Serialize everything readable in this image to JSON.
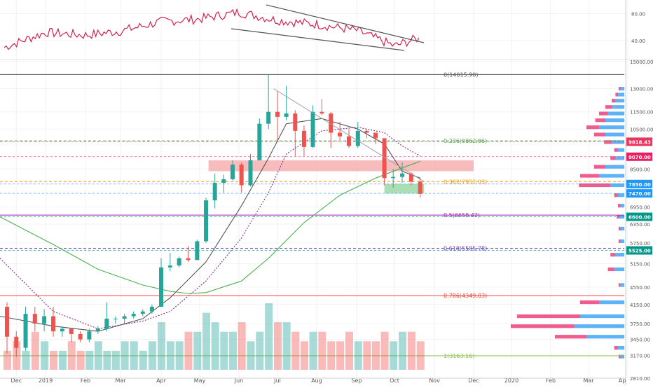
{
  "chart_data": [
    {
      "id": "indicator",
      "type": "line",
      "panel": "oscillator (RSI-style, not labeled)",
      "y_ticks": [
        "80.00",
        "40.00"
      ],
      "ylim": [
        15,
        98
      ],
      "line_color": "#d6204f",
      "series_monthly_approx": {
        "dates": [
          "2018-12-01",
          "2019-01-01",
          "2019-02-01",
          "2019-03-01",
          "2019-04-01",
          "2019-05-01",
          "2019-06-01",
          "2019-07-01",
          "2019-08-01",
          "2019-09-01",
          "2019-10-01",
          "2019-10-20"
        ],
        "values": [
          30,
          52,
          48,
          54,
          68,
          72,
          82,
          70,
          64,
          55,
          32,
          44
        ]
      }
    },
    {
      "id": "price",
      "type": "candlestick",
      "title": "",
      "xlabel": "",
      "ylabel": "",
      "ylim": [
        2810,
        15000
      ],
      "x_tick_labels": [
        "Dec",
        "2019",
        "Feb",
        "Mar",
        "Apr",
        "May",
        "Jun",
        "Jul",
        "Aug",
        "Sep",
        "Oct",
        "Nov",
        "Dec",
        "2020",
        "Feb",
        "Mar",
        "Ap"
      ],
      "y_tick_labels": [
        "15000.00",
        "13000.00",
        "11500.00",
        "10500.00",
        "9070.00",
        "8500.00",
        "7850.00",
        "7470.00",
        "6950.00",
        "6600.00",
        "6350.00",
        "5750.00",
        "5525.00",
        "5150.00",
        "4550.00",
        "4150.00",
        "3750.00",
        "3450.00",
        "3170.00",
        "2810.00"
      ],
      "price_badges": [
        {
          "label": "9818.43",
          "value": 9818.43,
          "color": "#e8365d"
        },
        {
          "label": "9070.00",
          "value": 9070.0,
          "color": "#e91e63"
        },
        {
          "label": "7850.00",
          "value": 7850.0,
          "color": "#2196f3"
        },
        {
          "label": "7470.00",
          "value": 7470.0,
          "color": "#2196f3"
        },
        {
          "label": "6600.00",
          "value": 6600.0,
          "color": "#009688"
        },
        {
          "label": "5525.00",
          "value": 5525.0,
          "color": "#009688"
        }
      ],
      "fibonacci_levels": [
        {
          "label": "0(14015.90)",
          "value": 14015.9,
          "color": "#555555"
        },
        {
          "label": "0.236(9862.86)",
          "value": 9862.86,
          "color": "#4caf50"
        },
        {
          "label": "0.382(7952.03)",
          "value": 7952.03,
          "color": "#ff9800"
        },
        {
          "label": "0.5(6658.42)",
          "value": 6658.42,
          "color": "#9c27b0"
        },
        {
          "label": "0.618(5585.78)",
          "value": 5585.78,
          "color": "#673ab7"
        },
        {
          "label": "0.786(4349.83)",
          "value": 4349.83,
          "color": "#f44336"
        },
        {
          "label": "1(3163.16)",
          "value": 3163.16,
          "color": "#8bc34a"
        }
      ],
      "zones": [
        {
          "name": "resistance zone",
          "from_date": "2019-05-08",
          "to_date": "2019-12-01",
          "low": 8400,
          "high": 8900,
          "color": "#f4a6a6"
        },
        {
          "name": "support zone",
          "from_date": "2019-09-23",
          "to_date": "2019-10-24",
          "low": 7470,
          "high": 7850,
          "color": "#8fd19e"
        }
      ],
      "candles_weekly_approx": [
        [
          "2018-12-03",
          4100,
          4200,
          3200,
          3500
        ],
        [
          "2018-12-10",
          3500,
          3600,
          3150,
          3300
        ],
        [
          "2018-12-17",
          3300,
          4100,
          3250,
          3950
        ],
        [
          "2018-12-24",
          3950,
          4100,
          3600,
          3750
        ],
        [
          "2018-12-31",
          3750,
          4050,
          3600,
          3900
        ],
        [
          "2019-01-07",
          3900,
          4100,
          3500,
          3600
        ],
        [
          "2019-01-14",
          3600,
          3700,
          3500,
          3650
        ],
        [
          "2019-01-21",
          3650,
          3650,
          3400,
          3550
        ],
        [
          "2019-01-28",
          3550,
          3600,
          3400,
          3450
        ],
        [
          "2019-02-04",
          3450,
          3650,
          3400,
          3600
        ],
        [
          "2019-02-11",
          3600,
          3700,
          3550,
          3650
        ],
        [
          "2019-02-18",
          3650,
          4200,
          3600,
          3850
        ],
        [
          "2019-02-25",
          3850,
          3900,
          3750,
          3850
        ],
        [
          "2019-03-04",
          3850,
          3950,
          3750,
          3900
        ],
        [
          "2019-03-11",
          3900,
          4000,
          3850,
          3950
        ],
        [
          "2019-03-18",
          3950,
          4050,
          3900,
          4000
        ],
        [
          "2019-03-25",
          4000,
          4150,
          3950,
          4100
        ],
        [
          "2019-04-01",
          4100,
          5300,
          4100,
          5050
        ],
        [
          "2019-04-08",
          5050,
          5450,
          4950,
          5100
        ],
        [
          "2019-04-15",
          5100,
          5350,
          5050,
          5300
        ],
        [
          "2019-04-22",
          5300,
          5650,
          5200,
          5250
        ],
        [
          "2019-04-29",
          5250,
          5850,
          5250,
          5800
        ],
        [
          "2019-05-06",
          5800,
          7300,
          5750,
          7200
        ],
        [
          "2019-05-13",
          7200,
          8300,
          6900,
          7900
        ],
        [
          "2019-05-20",
          7900,
          8250,
          7500,
          8050
        ],
        [
          "2019-05-27",
          8050,
          8900,
          8000,
          8700
        ],
        [
          "2019-06-03",
          8700,
          8800,
          7500,
          7800
        ],
        [
          "2019-06-10",
          7800,
          9200,
          7750,
          8900
        ],
        [
          "2019-06-17",
          8900,
          11100,
          8900,
          10800
        ],
        [
          "2019-06-24",
          10800,
          14015.9,
          10500,
          11500
        ],
        [
          "2019-07-01",
          11500,
          12800,
          9900,
          11200
        ],
        [
          "2019-07-08",
          11200,
          13200,
          11000,
          11400
        ],
        [
          "2019-07-15",
          11400,
          11600,
          9100,
          10400
        ],
        [
          "2019-07-22",
          10400,
          10700,
          9100,
          9550
        ],
        [
          "2019-07-29",
          9550,
          11900,
          9500,
          11500
        ],
        [
          "2019-08-05",
          11500,
          12300,
          11300,
          11400
        ],
        [
          "2019-08-12",
          11400,
          11500,
          9500,
          10300
        ],
        [
          "2019-08-19",
          10300,
          10900,
          9900,
          10100
        ],
        [
          "2019-08-26",
          10100,
          10500,
          9500,
          9600
        ],
        [
          "2019-09-02",
          9600,
          10900,
          9500,
          10400
        ],
        [
          "2019-09-09",
          10400,
          10500,
          10000,
          10300
        ],
        [
          "2019-09-16",
          10300,
          10300,
          9700,
          10000
        ],
        [
          "2019-09-23",
          10000,
          10000,
          7800,
          8100
        ],
        [
          "2019-09-30",
          8100,
          8500,
          7700,
          8150
        ],
        [
          "2019-10-07",
          8150,
          8800,
          7900,
          8300
        ],
        [
          "2019-10-14",
          8300,
          8350,
          7800,
          7950
        ],
        [
          "2019-10-21",
          7950,
          8100,
          7300,
          7450
        ]
      ],
      "moving_averages": [
        {
          "name": "short MA",
          "color": "#555555",
          "dash": "",
          "values": [
            [
              0,
              3900
            ],
            [
              5,
              3700
            ],
            [
              10,
              3600
            ],
            [
              15,
              3850
            ],
            [
              18,
              4300
            ],
            [
              22,
              5200
            ],
            [
              26,
              7000
            ],
            [
              29,
              9000
            ],
            [
              31,
              10800
            ],
            [
              35,
              11100
            ],
            [
              39,
              10500
            ],
            [
              42,
              9700
            ],
            [
              44,
              8400
            ],
            [
              46,
              8100
            ]
          ]
        },
        {
          "name": "mid MA",
          "color": "#7b2c8c",
          "dash": "2,2",
          "values": [
            [
              0,
              5300
            ],
            [
              5,
              4000
            ],
            [
              10,
              3650
            ],
            [
              15,
              3800
            ],
            [
              18,
              4000
            ],
            [
              22,
              4700
            ],
            [
              26,
              5900
            ],
            [
              29,
              7500
            ],
            [
              31,
              9200
            ],
            [
              35,
              10400
            ],
            [
              39,
              10600
            ],
            [
              42,
              10300
            ],
            [
              44,
              9600
            ],
            [
              46,
              9100
            ]
          ]
        },
        {
          "name": "long MA",
          "color": "#4caf50",
          "dash": "",
          "values": [
            [
              0,
              6600
            ],
            [
              5,
              5700
            ],
            [
              10,
              5000
            ],
            [
              15,
              4600
            ],
            [
              18,
              4450
            ],
            [
              20,
              4400
            ],
            [
              22,
              4420
            ],
            [
              26,
              4700
            ],
            [
              29,
              5300
            ],
            [
              33,
              6400
            ],
            [
              37,
              7400
            ],
            [
              41,
              8100
            ],
            [
              44,
              8550
            ],
            [
              46,
              8850
            ]
          ]
        }
      ],
      "trendlines": [
        {
          "color": "#9e9e9e",
          "from": [
            "2019-06-28",
            13000
          ],
          "to": [
            "2019-10-24",
            7950
          ]
        }
      ]
    },
    {
      "id": "volume",
      "type": "area",
      "panel": "volume",
      "colors": {
        "up": "#26a69a",
        "down": "#ef5350"
      },
      "volume_relative": [
        2,
        3,
        2,
        4,
        3,
        2,
        2,
        3,
        2,
        2,
        3,
        2,
        2,
        3,
        3,
        2,
        3,
        5,
        3,
        3,
        4,
        4,
        6,
        5,
        4,
        4,
        5,
        3,
        4,
        7,
        5,
        5,
        4,
        3,
        4,
        4,
        3,
        3,
        4,
        3,
        3,
        3,
        4,
        3,
        4,
        4,
        3
      ]
    },
    {
      "id": "volume-profile",
      "type": "bar",
      "orientation": "horizontal",
      "colors": {
        "buy": "#42a5f5",
        "sell": "#ec407a"
      },
      "rows": [
        {
          "price": 13000,
          "buy": 6,
          "sell": 3
        },
        {
          "price": 12600,
          "buy": 10,
          "sell": 4
        },
        {
          "price": 12200,
          "buy": 14,
          "sell": 6
        },
        {
          "price": 11800,
          "buy": 20,
          "sell": 10
        },
        {
          "price": 11400,
          "buy": 26,
          "sell": 14
        },
        {
          "price": 11000,
          "buy": 30,
          "sell": 16
        },
        {
          "price": 10600,
          "buy": 40,
          "sell": 20
        },
        {
          "price": 10200,
          "buy": 30,
          "sell": 18
        },
        {
          "price": 9800,
          "buy": 20,
          "sell": 12
        },
        {
          "price": 9400,
          "buy": 10,
          "sell": 6
        },
        {
          "price": 9000,
          "buy": 14,
          "sell": 8
        },
        {
          "price": 8600,
          "buy": 30,
          "sell": 18
        },
        {
          "price": 8200,
          "buy": 40,
          "sell": 30
        },
        {
          "price": 7800,
          "buy": 22,
          "sell": 50
        },
        {
          "price": 7400,
          "buy": 10,
          "sell": 6
        },
        {
          "price": 7000,
          "buy": 6,
          "sell": 4
        },
        {
          "price": 6600,
          "buy": 8,
          "sell": 4
        },
        {
          "price": 6200,
          "buy": 6,
          "sell": 3
        },
        {
          "price": 5800,
          "buy": 6,
          "sell": 3
        },
        {
          "price": 5400,
          "buy": 14,
          "sell": 8
        },
        {
          "price": 5000,
          "buy": 16,
          "sell": 10
        },
        {
          "price": 4600,
          "buy": 6,
          "sell": 3
        },
        {
          "price": 4200,
          "buy": 40,
          "sell": 30
        },
        {
          "price": 3900,
          "buy": 70,
          "sell": 100
        },
        {
          "price": 3700,
          "buy": 80,
          "sell": 100
        },
        {
          "price": 3500,
          "buy": 60,
          "sell": 50
        },
        {
          "price": 3300,
          "buy": 10,
          "sell": 6
        },
        {
          "price": 3150,
          "buy": 6,
          "sell": 3
        }
      ]
    }
  ]
}
